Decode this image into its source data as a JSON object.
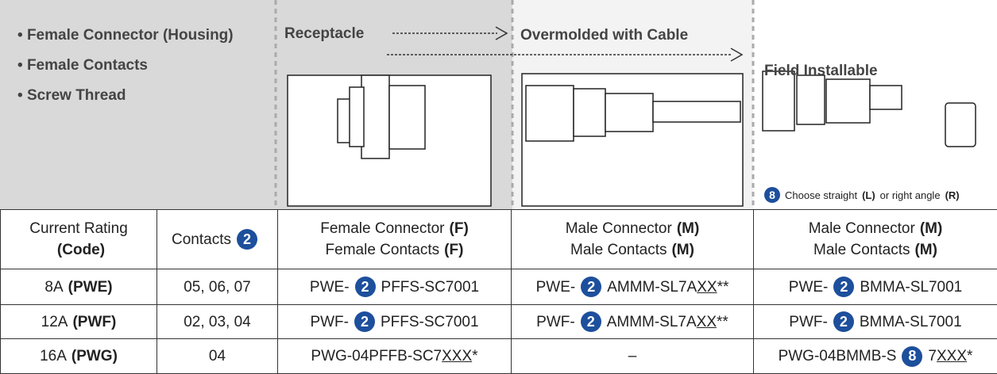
{
  "header": {
    "bullets": [
      "Female Connector (Housing)",
      "Female Contacts",
      "Screw Thread"
    ],
    "labels": [
      "Receptacle",
      "Overmolded with Cable",
      "Field Installable"
    ],
    "note": [
      {
        "text": "8",
        "badge": true
      },
      {
        "text": "Choose straight"
      },
      {
        "text": "(L)",
        "bold": true
      },
      {
        "text": "or right angle"
      },
      {
        "text": "(R)",
        "bold": true
      }
    ]
  },
  "table": {
    "rows": [
      [
        [
          [
            {
              "text": "Current Rating"
            }
          ],
          [
            {
              "text": "(Code)",
              "bold": true
            }
          ]
        ],
        [
          [
            {
              "text": "Contacts"
            },
            {
              "text": "2",
              "badge": true
            }
          ]
        ],
        [
          [
            {
              "text": "Female Connector"
            },
            {
              "text": "(F)",
              "bold": true
            }
          ],
          [
            {
              "text": "Female Contacts"
            },
            {
              "text": "(F)",
              "bold": true
            }
          ]
        ],
        [
          [
            {
              "text": "Male Connector"
            },
            {
              "text": "(M)",
              "bold": true
            }
          ],
          [
            {
              "text": "Male Contacts"
            },
            {
              "text": "(M)",
              "bold": true
            }
          ]
        ],
        [
          [
            {
              "text": "Male Connector"
            },
            {
              "text": "(M)",
              "bold": true
            }
          ],
          [
            {
              "text": "Male Contacts"
            },
            {
              "text": "(M)",
              "bold": true
            }
          ]
        ]
      ],
      [
        [
          [
            {
              "text": "8A"
            },
            {
              "text": "(PWE)",
              "bold": true
            }
          ]
        ],
        [
          [
            {
              "text": "05, 06, 07"
            }
          ]
        ],
        [
          [
            {
              "text": "PWE-"
            },
            {
              "text": "2",
              "badge": true
            },
            {
              "text": "PFFS-SC7001"
            }
          ]
        ],
        [
          [
            {
              "text": "PWE-"
            },
            {
              "text": "2",
              "badge": true
            },
            {
              "text": "AMMM-SL7A"
            },
            {
              "text": "XX",
              "underline": true
            },
            {
              "text": "**"
            }
          ]
        ],
        [
          [
            {
              "text": "PWE-"
            },
            {
              "text": "2",
              "badge": true
            },
            {
              "text": "BMMA-SL7001"
            }
          ]
        ]
      ],
      [
        [
          [
            {
              "text": "12A"
            },
            {
              "text": "(PWF)",
              "bold": true
            }
          ]
        ],
        [
          [
            {
              "text": "02, 03, 04"
            }
          ]
        ],
        [
          [
            {
              "text": "PWF-"
            },
            {
              "text": "2",
              "badge": true
            },
            {
              "text": "PFFS-SC7001"
            }
          ]
        ],
        [
          [
            {
              "text": "PWF-"
            },
            {
              "text": "2",
              "badge": true
            },
            {
              "text": "AMMM-SL7A"
            },
            {
              "text": "XX",
              "underline": true
            },
            {
              "text": "**"
            }
          ]
        ],
        [
          [
            {
              "text": "PWF-"
            },
            {
              "text": "2",
              "badge": true
            },
            {
              "text": "BMMA-SL7001"
            }
          ]
        ]
      ],
      [
        [
          [
            {
              "text": "16A"
            },
            {
              "text": "(PWG)",
              "bold": true
            }
          ]
        ],
        [
          [
            {
              "text": "04"
            }
          ]
        ],
        [
          [
            {
              "text": "PWG-04PFFB-SC7"
            },
            {
              "text": "XXX",
              "underline": true
            },
            {
              "text": "*"
            }
          ]
        ],
        [
          [
            {
              "text": "–"
            }
          ]
        ],
        [
          [
            {
              "text": "PWG-04BMMB-S"
            },
            {
              "text": "8",
              "badge": true
            },
            {
              "text": "7"
            },
            {
              "text": "XXX",
              "underline": true
            },
            {
              "text": "*"
            }
          ]
        ]
      ]
    ]
  }
}
